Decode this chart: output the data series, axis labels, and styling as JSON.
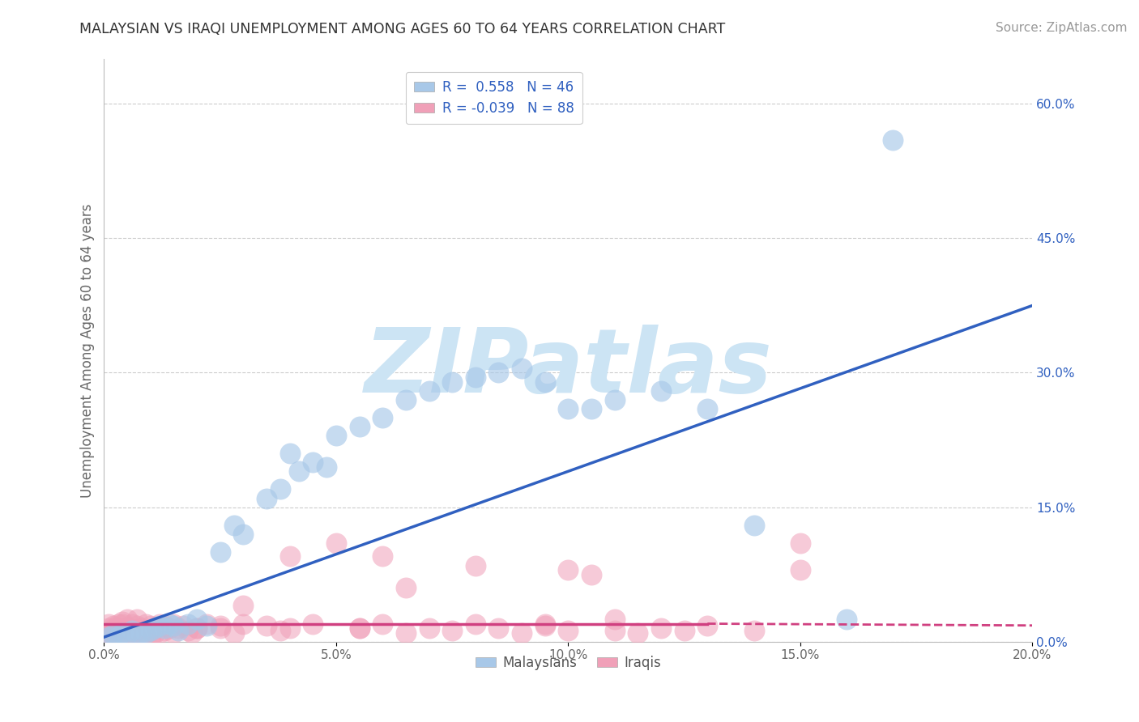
{
  "title": "MALAYSIAN VS IRAQI UNEMPLOYMENT AMONG AGES 60 TO 64 YEARS CORRELATION CHART",
  "source": "Source: ZipAtlas.com",
  "ylabel": "Unemployment Among Ages 60 to 64 years",
  "xlim": [
    0.0,
    0.2
  ],
  "ylim": [
    0.0,
    0.65
  ],
  "xticks": [
    0.0,
    0.05,
    0.1,
    0.15,
    0.2
  ],
  "xtick_labels": [
    "0.0%",
    "5.0%",
    "10.0%",
    "15.0%",
    "20.0%"
  ],
  "yticks_right": [
    0.0,
    0.15,
    0.3,
    0.45,
    0.6
  ],
  "ytick_labels_right": [
    "0.0%",
    "15.0%",
    "30.0%",
    "45.0%",
    "60.0%"
  ],
  "malaysian_color": "#a8c8e8",
  "iraqi_color": "#f0a0b8",
  "trend_malaysian_color": "#3060c0",
  "trend_iraqi_color": "#d04080",
  "watermark_color": "#cce4f4",
  "background_color": "#ffffff",
  "grid_color": "#cccccc",
  "malaysian_x": [
    0.001,
    0.002,
    0.003,
    0.004,
    0.005,
    0.006,
    0.007,
    0.008,
    0.009,
    0.01,
    0.011,
    0.012,
    0.013,
    0.014,
    0.015,
    0.016,
    0.018,
    0.02,
    0.022,
    0.025,
    0.028,
    0.03,
    0.035,
    0.038,
    0.04,
    0.042,
    0.045,
    0.048,
    0.05,
    0.055,
    0.06,
    0.065,
    0.07,
    0.075,
    0.08,
    0.085,
    0.09,
    0.095,
    0.1,
    0.105,
    0.11,
    0.12,
    0.13,
    0.14,
    0.16,
    0.17
  ],
  "malaysian_y": [
    0.005,
    0.008,
    0.006,
    0.01,
    0.008,
    0.012,
    0.007,
    0.009,
    0.01,
    0.012,
    0.015,
    0.018,
    0.015,
    0.02,
    0.018,
    0.012,
    0.02,
    0.025,
    0.018,
    0.1,
    0.13,
    0.12,
    0.16,
    0.17,
    0.21,
    0.19,
    0.2,
    0.195,
    0.23,
    0.24,
    0.25,
    0.27,
    0.28,
    0.29,
    0.295,
    0.3,
    0.305,
    0.29,
    0.26,
    0.26,
    0.27,
    0.28,
    0.26,
    0.13,
    0.025,
    0.56
  ],
  "iraqi_x": [
    0.001,
    0.001,
    0.001,
    0.002,
    0.002,
    0.002,
    0.003,
    0.003,
    0.003,
    0.004,
    0.004,
    0.004,
    0.005,
    0.005,
    0.005,
    0.006,
    0.006,
    0.006,
    0.007,
    0.007,
    0.007,
    0.008,
    0.008,
    0.009,
    0.009,
    0.01,
    0.01,
    0.011,
    0.011,
    0.012,
    0.012,
    0.013,
    0.013,
    0.014,
    0.015,
    0.016,
    0.017,
    0.018,
    0.019,
    0.02,
    0.022,
    0.025,
    0.028,
    0.03,
    0.035,
    0.038,
    0.04,
    0.045,
    0.05,
    0.055,
    0.06,
    0.065,
    0.07,
    0.075,
    0.08,
    0.085,
    0.09,
    0.095,
    0.1,
    0.105,
    0.11,
    0.115,
    0.12,
    0.125,
    0.13,
    0.1,
    0.11,
    0.14,
    0.15,
    0.15,
    0.08,
    0.06,
    0.065,
    0.04,
    0.095,
    0.055,
    0.03,
    0.025,
    0.02,
    0.015,
    0.01,
    0.008,
    0.006,
    0.005,
    0.004,
    0.003,
    0.002,
    0.001
  ],
  "iraqi_y": [
    0.005,
    0.01,
    0.015,
    0.008,
    0.012,
    0.018,
    0.007,
    0.013,
    0.02,
    0.009,
    0.015,
    0.022,
    0.01,
    0.016,
    0.025,
    0.008,
    0.014,
    0.02,
    0.01,
    0.018,
    0.025,
    0.008,
    0.015,
    0.01,
    0.02,
    0.012,
    0.018,
    0.01,
    0.016,
    0.01,
    0.02,
    0.012,
    0.018,
    0.015,
    0.02,
    0.015,
    0.018,
    0.012,
    0.01,
    0.015,
    0.02,
    0.015,
    0.01,
    0.02,
    0.018,
    0.012,
    0.015,
    0.02,
    0.11,
    0.015,
    0.02,
    0.01,
    0.015,
    0.012,
    0.02,
    0.015,
    0.01,
    0.018,
    0.08,
    0.075,
    0.012,
    0.01,
    0.015,
    0.012,
    0.018,
    0.012,
    0.025,
    0.012,
    0.11,
    0.08,
    0.085,
    0.095,
    0.06,
    0.095,
    0.02,
    0.015,
    0.04,
    0.018,
    0.015,
    0.01,
    0.005,
    0.008,
    0.01,
    0.015,
    0.02,
    0.012,
    0.015,
    0.02
  ]
}
